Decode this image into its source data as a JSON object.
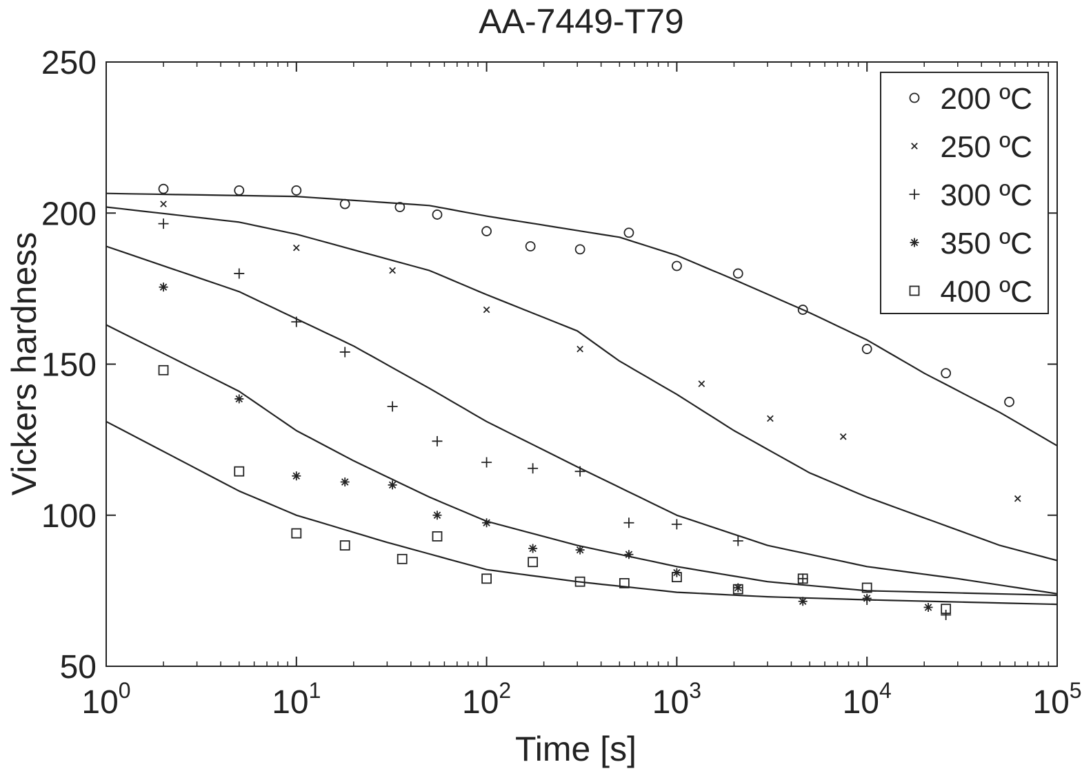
{
  "chart_data": {
    "type": "scatter",
    "title": "AA-7449-T79",
    "xlabel": "Time [s]",
    "ylabel": "Vickers hardness",
    "xscale": "log",
    "xlim": [
      1,
      100000
    ],
    "ylim": [
      50,
      250
    ],
    "grid": false,
    "legend_position": "top-right",
    "x_ticks": [
      {
        "value": 1,
        "base": "10",
        "exp": "0"
      },
      {
        "value": 10,
        "base": "10",
        "exp": "1"
      },
      {
        "value": 100,
        "base": "10",
        "exp": "2"
      },
      {
        "value": 1000,
        "base": "10",
        "exp": "3"
      },
      {
        "value": 10000,
        "base": "10",
        "exp": "4"
      },
      {
        "value": 100000,
        "base": "10",
        "exp": "5"
      }
    ],
    "y_ticks": [
      50,
      100,
      150,
      200,
      250
    ],
    "series": [
      {
        "name": "200 ºC",
        "marker": "circle",
        "points": [
          [
            2,
            208
          ],
          [
            5,
            207.5
          ],
          [
            10,
            207.5
          ],
          [
            18,
            203
          ],
          [
            35,
            202
          ],
          [
            55,
            199.5
          ],
          [
            100,
            194
          ],
          [
            170,
            189
          ],
          [
            310,
            188
          ],
          [
            560,
            193.5
          ],
          [
            1000,
            182.5
          ],
          [
            2100,
            180
          ],
          [
            4600,
            168
          ],
          [
            10000,
            155
          ],
          [
            26000,
            147
          ],
          [
            56000,
            137.5
          ]
        ],
        "fit": [
          [
            1,
            206.5
          ],
          [
            10,
            205.5
          ],
          [
            50,
            202.5
          ],
          [
            100,
            199
          ],
          [
            500,
            192
          ],
          [
            1000,
            186
          ],
          [
            2000,
            178
          ],
          [
            5000,
            167
          ],
          [
            10000,
            158
          ],
          [
            20000,
            147
          ],
          [
            50000,
            134
          ],
          [
            100000,
            123
          ]
        ]
      },
      {
        "name": "250 ºC",
        "marker": "x",
        "points": [
          [
            2,
            203
          ],
          [
            10,
            188.5
          ],
          [
            32,
            181
          ],
          [
            100,
            168
          ],
          [
            310,
            155
          ],
          [
            1350,
            143.5
          ],
          [
            3100,
            132
          ],
          [
            7500,
            126
          ],
          [
            62000,
            105.5
          ]
        ],
        "fit": [
          [
            1,
            202
          ],
          [
            5,
            197
          ],
          [
            10,
            193
          ],
          [
            50,
            181
          ],
          [
            100,
            173
          ],
          [
            300,
            161
          ],
          [
            500,
            151
          ],
          [
            1000,
            140
          ],
          [
            2000,
            128
          ],
          [
            5000,
            114
          ],
          [
            10000,
            106
          ],
          [
            50000,
            90
          ],
          [
            100000,
            85
          ]
        ]
      },
      {
        "name": "300 ºC",
        "marker": "plus",
        "points": [
          [
            2,
            196.5
          ],
          [
            5,
            180
          ],
          [
            10,
            164
          ],
          [
            18,
            154
          ],
          [
            32,
            136
          ],
          [
            55,
            124.5
          ],
          [
            100,
            117.5
          ],
          [
            175,
            115.5
          ],
          [
            310,
            114.5
          ],
          [
            560,
            97.5
          ],
          [
            1000,
            97
          ],
          [
            2100,
            91.5
          ],
          [
            4600,
            79
          ],
          [
            10000,
            72
          ],
          [
            26000,
            67
          ]
        ],
        "fit": [
          [
            1,
            189
          ],
          [
            5,
            174
          ],
          [
            10,
            165
          ],
          [
            20,
            156
          ],
          [
            50,
            142
          ],
          [
            100,
            131
          ],
          [
            300,
            116
          ],
          [
            1000,
            100
          ],
          [
            3000,
            90
          ],
          [
            10000,
            83
          ],
          [
            30000,
            79
          ],
          [
            100000,
            74
          ]
        ]
      },
      {
        "name": "350 ºC",
        "marker": "asterisk",
        "points": [
          [
            2,
            175.5
          ],
          [
            5,
            138.5
          ],
          [
            10,
            113
          ],
          [
            18,
            111
          ],
          [
            32,
            110
          ],
          [
            55,
            100
          ],
          [
            100,
            97.5
          ],
          [
            175,
            89
          ],
          [
            310,
            88.5
          ],
          [
            560,
            87
          ],
          [
            1000,
            81
          ],
          [
            2100,
            76
          ],
          [
            4600,
            71.5
          ],
          [
            10000,
            72.5
          ],
          [
            21000,
            69.5
          ]
        ],
        "fit": [
          [
            1,
            163
          ],
          [
            5,
            141
          ],
          [
            10,
            128
          ],
          [
            20,
            118
          ],
          [
            50,
            106
          ],
          [
            100,
            98
          ],
          [
            300,
            90
          ],
          [
            1000,
            83
          ],
          [
            3000,
            78
          ],
          [
            10000,
            75
          ],
          [
            100000,
            73.5
          ]
        ]
      },
      {
        "name": "400 ºC",
        "marker": "square",
        "points": [
          [
            2,
            148
          ],
          [
            5,
            114.5
          ],
          [
            10,
            94
          ],
          [
            18,
            90
          ],
          [
            36,
            85.5
          ],
          [
            55,
            93
          ],
          [
            100,
            79
          ],
          [
            175,
            84.5
          ],
          [
            310,
            78
          ],
          [
            530,
            77.5
          ],
          [
            1000,
            79.5
          ],
          [
            2100,
            75.5
          ],
          [
            4600,
            79
          ],
          [
            10000,
            76
          ],
          [
            26000,
            69
          ]
        ],
        "fit": [
          [
            1,
            131
          ],
          [
            5,
            108
          ],
          [
            10,
            100
          ],
          [
            30,
            91
          ],
          [
            100,
            82
          ],
          [
            300,
            78
          ],
          [
            1000,
            74.5
          ],
          [
            3000,
            73
          ],
          [
            10000,
            72
          ],
          [
            100000,
            70.5
          ]
        ]
      }
    ]
  }
}
